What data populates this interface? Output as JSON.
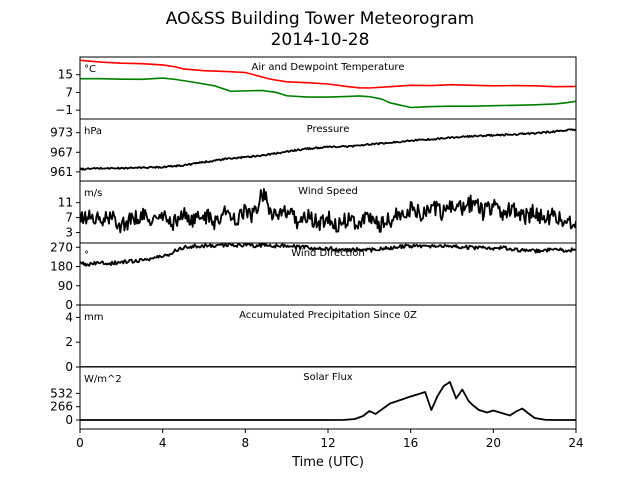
{
  "figure": {
    "title": "AO&SS Building Tower Meteorogram",
    "subtitle": "2014-10-28",
    "xlabel": "Time (UTC)"
  },
  "chart_data": {
    "type": "line",
    "x_axis": {
      "min": 0,
      "max": 24,
      "ticks": [
        0,
        4,
        8,
        12,
        16,
        20,
        24
      ],
      "label": "Time (UTC)"
    },
    "panels": [
      {
        "id": "temperature",
        "title": "Air and Dewpoint Temperature",
        "unit": "°C",
        "ylim": [
          -5,
          23
        ],
        "yticks": [
          -1,
          7,
          15
        ],
        "series": [
          {
            "color": "#ff0000",
            "points": [
              [
                0,
                21.5
              ],
              [
                1,
                20.7
              ],
              [
                2,
                20.2
              ],
              [
                3,
                20.0
              ],
              [
                4,
                19.4
              ],
              [
                4.6,
                18.6
              ],
              [
                5,
                17.6
              ],
              [
                6,
                16.8
              ],
              [
                7,
                16.5
              ],
              [
                8,
                16.0
              ],
              [
                8.6,
                14.5
              ],
              [
                9.2,
                13.0
              ],
              [
                10,
                11.8
              ],
              [
                11,
                11.4
              ],
              [
                12,
                10.8
              ],
              [
                13,
                9.6
              ],
              [
                13.5,
                9.1
              ],
              [
                14,
                9.0
              ],
              [
                15,
                9.6
              ],
              [
                16,
                10.2
              ],
              [
                17,
                10.1
              ],
              [
                18,
                10.5
              ],
              [
                19,
                10.2
              ],
              [
                20,
                10.0
              ],
              [
                21,
                10.1
              ],
              [
                22,
                10.0
              ],
              [
                23,
                9.6
              ],
              [
                24,
                9.7
              ]
            ]
          },
          {
            "color": "#008000",
            "points": [
              [
                0,
                13.2
              ],
              [
                1,
                13.2
              ],
              [
                2,
                13.0
              ],
              [
                3,
                12.9
              ],
              [
                4,
                13.5
              ],
              [
                4.6,
                12.9
              ],
              [
                5.5,
                11.6
              ],
              [
                6.5,
                10.0
              ],
              [
                7.3,
                7.5
              ],
              [
                8,
                7.7
              ],
              [
                8.8,
                7.9
              ],
              [
                9.5,
                7.0
              ],
              [
                10,
                5.5
              ],
              [
                11,
                4.9
              ],
              [
                12,
                4.9
              ],
              [
                13,
                5.2
              ],
              [
                13.5,
                5.4
              ],
              [
                14,
                5.1
              ],
              [
                14.6,
                4.0
              ],
              [
                15,
                2.3
              ],
              [
                16,
                0.2
              ],
              [
                16.5,
                0.4
              ],
              [
                17,
                0.6
              ],
              [
                18,
                0.8
              ],
              [
                19,
                0.8
              ],
              [
                20,
                1.0
              ],
              [
                21,
                1.2
              ],
              [
                22,
                1.4
              ],
              [
                23,
                1.8
              ],
              [
                23.5,
                2.3
              ],
              [
                24,
                3.0
              ]
            ]
          }
        ]
      },
      {
        "id": "pressure",
        "title": "Pressure",
        "unit": "hPa",
        "ylim": [
          958.2,
          977.2
        ],
        "yticks": [
          961,
          967,
          973
        ],
        "series": [
          {
            "color": "#000000",
            "points": [
              [
                0,
                961.8
              ],
              [
                1,
                962.1
              ],
              [
                2,
                962.1
              ],
              [
                3,
                962.3
              ],
              [
                4,
                962.5
              ],
              [
                5,
                963.0
              ],
              [
                6,
                964.0
              ],
              [
                7,
                964.9
              ],
              [
                8,
                965.5
              ],
              [
                9,
                966.2
              ],
              [
                10,
                967.2
              ],
              [
                11,
                968.1
              ],
              [
                12,
                968.6
              ],
              [
                13,
                968.8
              ],
              [
                14,
                969.4
              ],
              [
                15,
                969.9
              ],
              [
                16,
                970.6
              ],
              [
                17,
                971.0
              ],
              [
                18,
                971.5
              ],
              [
                19,
                971.9
              ],
              [
                20,
                972.2
              ],
              [
                21,
                972.5
              ],
              [
                22,
                972.8
              ],
              [
                23,
                973.4
              ],
              [
                24,
                974.0
              ]
            ]
          }
        ]
      },
      {
        "id": "wind_speed",
        "title": "Wind Speed",
        "unit": "m/s",
        "ylim": [
          0.2,
          16.8
        ],
        "yticks": [
          3,
          7,
          11
        ],
        "series": [
          {
            "color": "#000000",
            "points": [
              [
                0,
                6.5
              ],
              [
                0.5,
                7.4
              ],
              [
                1,
                5.9
              ],
              [
                1.5,
                7.1
              ],
              [
                2,
                5.0
              ],
              [
                2.5,
                6.5
              ],
              [
                3,
                7.5
              ],
              [
                3.5,
                6.2
              ],
              [
                4,
                7.2
              ],
              [
                4.5,
                5.5
              ],
              [
                5,
                8.0
              ],
              [
                5.5,
                6.0
              ],
              [
                6,
                7.8
              ],
              [
                6.5,
                5.8
              ],
              [
                7,
                8.6
              ],
              [
                7.5,
                6.2
              ],
              [
                8,
                9.2
              ],
              [
                8.3,
                7.0
              ],
              [
                8.6,
                10.5
              ],
              [
                8.9,
                14.2
              ],
              [
                9.2,
                9.0
              ],
              [
                9.6,
                7.2
              ],
              [
                10,
                8.5
              ],
              [
                10.5,
                6.0
              ],
              [
                11,
                7.3
              ],
              [
                11.5,
                5.5
              ],
              [
                12,
                6.8
              ],
              [
                12.5,
                4.8
              ],
              [
                13,
                7.0
              ],
              [
                13.5,
                5.5
              ],
              [
                14,
                7.4
              ],
              [
                14.5,
                5.2
              ],
              [
                15,
                6.4
              ],
              [
                15.5,
                7.9
              ],
              [
                16,
                9.5
              ],
              [
                16.5,
                8.0
              ],
              [
                17,
                10.6
              ],
              [
                17.5,
                8.2
              ],
              [
                18,
                10.0
              ],
              [
                18.5,
                9.2
              ],
              [
                19,
                11.2
              ],
              [
                19.5,
                8.5
              ],
              [
                20,
                10.5
              ],
              [
                20.5,
                8.0
              ],
              [
                21,
                9.5
              ],
              [
                21.5,
                7.0
              ],
              [
                22,
                8.6
              ],
              [
                22.5,
                6.5
              ],
              [
                23,
                8.0
              ],
              [
                23.5,
                5.0
              ],
              [
                24,
                6.0
              ]
            ]
          }
        ]
      },
      {
        "id": "wind_direction",
        "title": "Wind Direction",
        "unit": "°",
        "ylim": [
          0,
          290
        ],
        "yticks": [
          0,
          90,
          180,
          270
        ],
        "series": [
          {
            "color": "#000000",
            "points": [
              [
                0,
                193
              ],
              [
                0.5,
                190
              ],
              [
                1,
                198
              ],
              [
                1.5,
                195
              ],
              [
                2,
                200
              ],
              [
                2.5,
                204
              ],
              [
                3,
                211
              ],
              [
                3.5,
                218
              ],
              [
                4,
                228
              ],
              [
                4.3,
                236
              ],
              [
                4.6,
                255
              ],
              [
                5,
                270
              ],
              [
                5.5,
                274
              ],
              [
                6,
                277
              ],
              [
                6.5,
                279
              ],
              [
                7,
                281
              ],
              [
                7.5,
                279
              ],
              [
                8,
                281
              ],
              [
                8.5,
                278
              ],
              [
                9,
                280
              ],
              [
                9.5,
                277
              ],
              [
                10,
                279
              ],
              [
                10.5,
                270
              ],
              [
                11,
                268
              ],
              [
                11.5,
                262
              ],
              [
                12,
                265
              ],
              [
                12.5,
                259
              ],
              [
                13,
                256
              ],
              [
                13.5,
                260
              ],
              [
                14,
                257
              ],
              [
                14.5,
                261
              ],
              [
                15,
                266
              ],
              [
                15.5,
                273
              ],
              [
                16,
                277
              ],
              [
                16.5,
                271
              ],
              [
                17,
                277
              ],
              [
                17.5,
                274
              ],
              [
                18,
                275
              ],
              [
                18.5,
                272
              ],
              [
                19,
                268
              ],
              [
                19.5,
                270
              ],
              [
                20,
                266
              ],
              [
                20.5,
                268
              ],
              [
                21,
                258
              ],
              [
                21.5,
                255
              ],
              [
                22,
                252
              ],
              [
                22.5,
                257
              ],
              [
                23,
                255
              ],
              [
                23.5,
                258
              ],
              [
                24,
                256
              ]
            ]
          }
        ]
      },
      {
        "id": "precipitation",
        "title": "Accumulated Precipitation Since 0Z",
        "unit": "mm",
        "ylim": [
          0,
          5
        ],
        "yticks": [
          0,
          2,
          4
        ],
        "series": [
          {
            "color": "#000000",
            "points": [
              [
                0,
                0
              ],
              [
                24,
                0
              ]
            ]
          }
        ]
      },
      {
        "id": "solar_flux",
        "title": "Solar Flux",
        "unit": "W/m^2",
        "ylim": [
          -180,
          1060
        ],
        "yticks": [
          0,
          266,
          532
        ],
        "series": [
          {
            "color": "#000000",
            "points": [
              [
                0,
                0
              ],
              [
                12,
                0
              ],
              [
                12.8,
                2
              ],
              [
                13.3,
                20
              ],
              [
                13.7,
                80
              ],
              [
                14,
                180
              ],
              [
                14.3,
                120
              ],
              [
                14.6,
                210
              ],
              [
                15,
                330
              ],
              [
                15.5,
                400
              ],
              [
                16,
                470
              ],
              [
                16.4,
                520
              ],
              [
                16.7,
                560
              ],
              [
                17,
                200
              ],
              [
                17.3,
                480
              ],
              [
                17.6,
                680
              ],
              [
                17.9,
                760
              ],
              [
                18.2,
                430
              ],
              [
                18.5,
                610
              ],
              [
                18.8,
                380
              ],
              [
                19,
                300
              ],
              [
                19.3,
                200
              ],
              [
                19.7,
                150
              ],
              [
                20,
                190
              ],
              [
                20.4,
                140
              ],
              [
                20.8,
                90
              ],
              [
                21.1,
                170
              ],
              [
                21.4,
                230
              ],
              [
                21.7,
                130
              ],
              [
                22,
                40
              ],
              [
                22.5,
                5
              ],
              [
                23,
                0
              ],
              [
                24,
                0
              ]
            ]
          }
        ]
      }
    ]
  }
}
